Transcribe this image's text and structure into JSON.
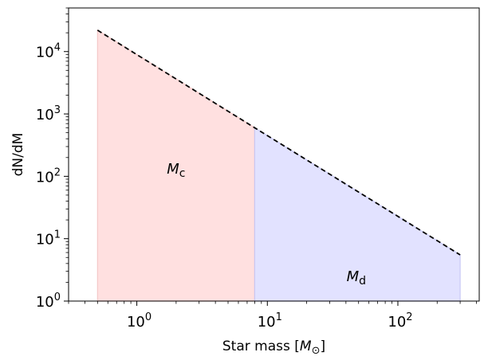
{
  "chart_data": {
    "type": "line",
    "xscale": "log",
    "yscale": "log",
    "xlabel": "Star mass [M⊙]",
    "ylabel": "dN/dM",
    "xlim": [
      0.3,
      420
    ],
    "ylim": [
      1,
      50000
    ],
    "grid": false,
    "x_ticks": [
      {
        "value": 1,
        "base": "10",
        "exp": "0"
      },
      {
        "value": 10,
        "base": "10",
        "exp": "1"
      },
      {
        "value": 100,
        "base": "10",
        "exp": "2"
      }
    ],
    "y_ticks": [
      {
        "value": 1,
        "base": "10",
        "exp": "0"
      },
      {
        "value": 10,
        "base": "10",
        "exp": "1"
      },
      {
        "value": 100,
        "base": "10",
        "exp": "2"
      },
      {
        "value": 1000,
        "base": "10",
        "exp": "3"
      },
      {
        "value": 10000,
        "base": "10",
        "exp": "4"
      }
    ],
    "series": [
      {
        "style": "dashed",
        "color": "#000000",
        "x": [
          0.5,
          8,
          300
        ],
        "y": [
          22000,
          600,
          5.5
        ]
      }
    ],
    "regions": [
      {
        "label_main": "M",
        "label_sub": "c",
        "x_range": [
          0.5,
          8
        ],
        "color": "#ffe0e0",
        "edge": "#f4c8c8",
        "label_at": [
          2.0,
          110
        ]
      },
      {
        "label_main": "M",
        "label_sub": "d",
        "x_range": [
          8,
          300
        ],
        "color": "#e2e2ff",
        "edge": "#c8c8f4",
        "label_at": [
          48,
          2.1
        ]
      }
    ]
  }
}
